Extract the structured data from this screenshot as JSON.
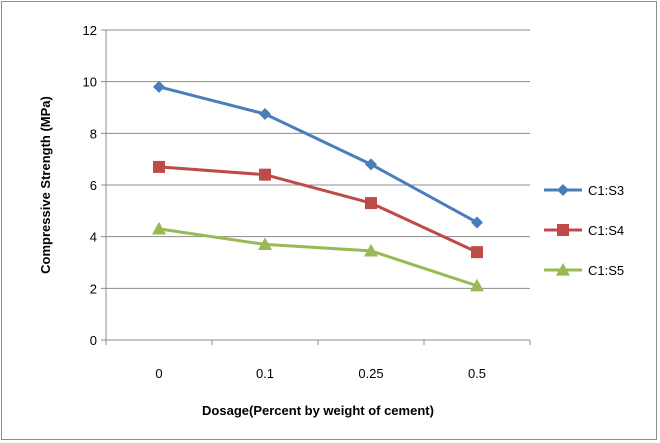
{
  "chart_data": {
    "type": "line",
    "title": "",
    "xlabel": "Dosage(Percent by weight of cement)",
    "ylabel": "Compressive Strength (MPa)",
    "categories": [
      "0",
      "0.1",
      "0.25",
      "0.5"
    ],
    "ylim": [
      0,
      12
    ],
    "yticks": [
      "0",
      "2",
      "4",
      "6",
      "8",
      "10",
      "12"
    ],
    "grid": "horizontal",
    "legend_position": "right",
    "series": [
      {
        "name": "C1:S3",
        "values": [
          9.8,
          8.75,
          6.8,
          4.55
        ],
        "color": "#4a7ebb",
        "marker": "diamond"
      },
      {
        "name": "C1:S4",
        "values": [
          6.7,
          6.4,
          5.3,
          3.4
        ],
        "color": "#be4b48",
        "marker": "square"
      },
      {
        "name": "C1:S5",
        "values": [
          4.3,
          3.7,
          3.45,
          2.1
        ],
        "color": "#98b954",
        "marker": "triangle"
      }
    ]
  }
}
